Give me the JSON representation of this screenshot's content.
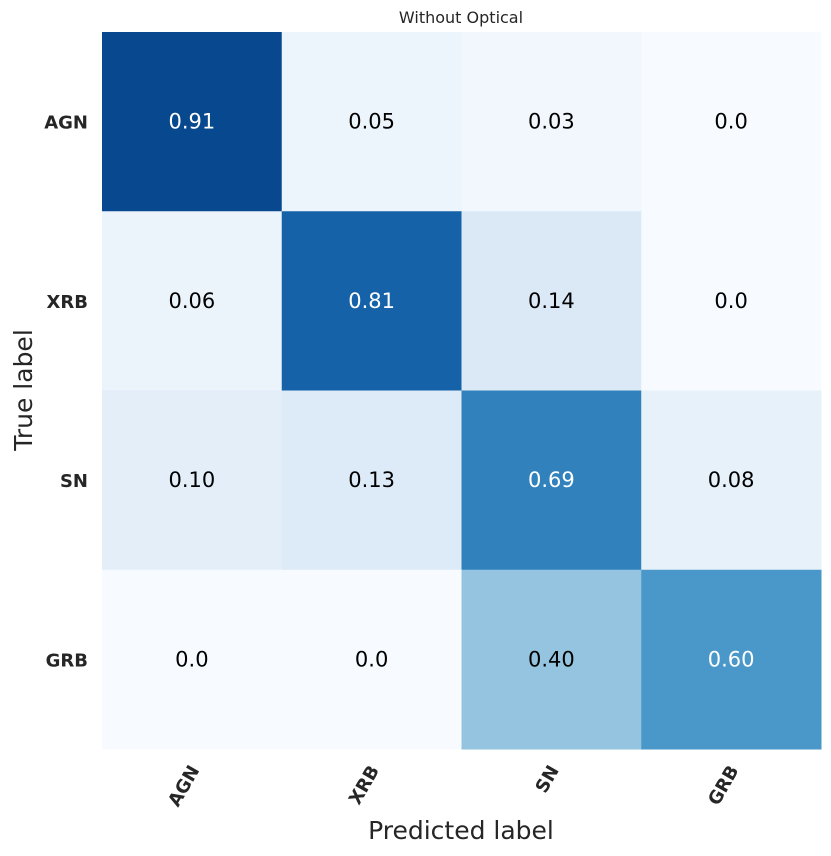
{
  "chart_data": {
    "type": "heatmap",
    "title": "Without Optical",
    "xlabel": "Predicted label",
    "ylabel": "True label",
    "x_categories": [
      "AGN",
      "XRB",
      "SN",
      "GRB"
    ],
    "y_categories": [
      "AGN",
      "XRB",
      "SN",
      "GRB"
    ],
    "values": [
      [
        0.91,
        0.05,
        0.03,
        0.0
      ],
      [
        0.06,
        0.81,
        0.14,
        0.0
      ],
      [
        0.1,
        0.13,
        0.69,
        0.08
      ],
      [
        0.0,
        0.0,
        0.4,
        0.6
      ]
    ],
    "labels": [
      [
        "0.91",
        "0.05",
        "0.03",
        "0.0"
      ],
      [
        "0.06",
        "0.81",
        "0.14",
        "0.0"
      ],
      [
        "0.10",
        "0.13",
        "0.69",
        "0.08"
      ],
      [
        "0.0",
        "0.0",
        "0.40",
        "0.60"
      ]
    ],
    "colormap": "Blues",
    "vmin": 0,
    "vmax": 1,
    "colors": {
      "text_dark": "#000000",
      "text_light": "#ffffff",
      "axis_text": "#262626"
    }
  }
}
